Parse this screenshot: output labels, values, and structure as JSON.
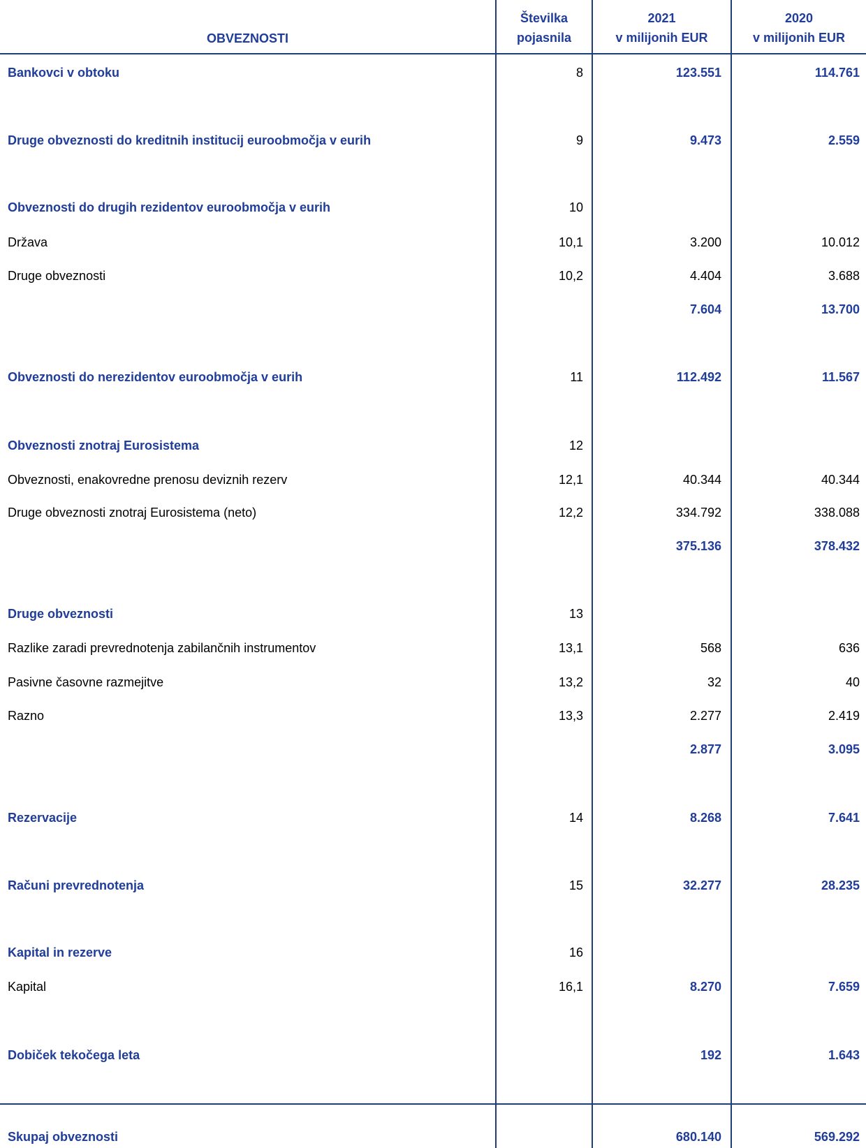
{
  "table": {
    "header": [
      "OBVEZNOSTI",
      [
        "Številka",
        "pojasnila"
      ],
      [
        "2021",
        "v milijonih EUR"
      ],
      [
        "2020",
        "v milijonih EUR"
      ]
    ],
    "rows": [
      [
        "Bankovci v obtoku",
        "8",
        "123.551",
        "114.761"
      ],
      [
        "Druge obveznosti do kreditnih institucij euroobmočja v eurih",
        "9",
        "9.473",
        "2.559"
      ],
      [
        "Obveznosti do drugih rezidentov euroobmočja v eurih",
        "10",
        null,
        null
      ],
      [
        "Država",
        "10,1",
        "3.200",
        "10.012"
      ],
      [
        "Druge obveznosti",
        "10,2",
        "4.404",
        "3.688"
      ],
      [
        null,
        null,
        "7.604",
        "13.700"
      ],
      [
        "Obveznosti do nerezidentov euroobmočja v eurih",
        "11",
        "112.492",
        "11.567"
      ],
      [
        "Obveznosti znotraj Eurosistema",
        "12",
        null,
        null
      ],
      [
        "Obveznosti, enakovredne prenosu deviznih rezerv",
        "12,1",
        "40.344",
        "40.344"
      ],
      [
        "Druge obveznosti znotraj Eurosistema (neto)",
        "12,2",
        "334.792",
        "338.088"
      ],
      [
        null,
        null,
        "375.136",
        "378.432"
      ],
      [
        "Druge obveznosti",
        "13",
        null,
        null
      ],
      [
        "Razlike zaradi prevrednotenja zabilančnih instrumentov",
        "13,1",
        "568",
        "636"
      ],
      [
        "Pasivne časovne razmejitve",
        "13,2",
        "32",
        "40"
      ],
      [
        "Razno",
        "13,3",
        "2.277",
        "2.419"
      ],
      [
        null,
        null,
        "2.877",
        "3.095"
      ],
      [
        "Rezervacije",
        "14",
        "8.268",
        "7.641"
      ],
      [
        "Računi prevrednotenja",
        "15",
        "32.277",
        "28.235"
      ],
      [
        "Kapital in rezerve",
        "16",
        null,
        null
      ],
      [
        "Kapital",
        "16,1",
        "8.270",
        "7.659"
      ],
      [
        "Dobiček tekočega leta",
        null,
        "192",
        "1.643"
      ],
      [
        "Skupaj obveznosti",
        null,
        "680.140",
        "569.292"
      ]
    ]
  }
}
